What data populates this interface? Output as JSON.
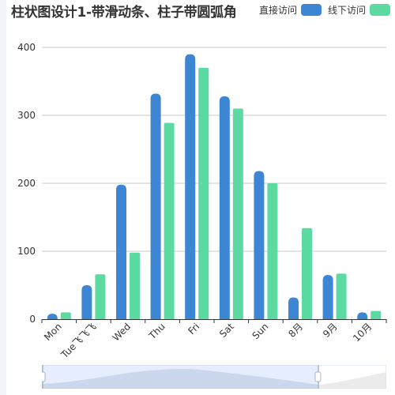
{
  "chart_data": {
    "type": "bar",
    "title": "柱状图设计1-带滑动条、柱子带圆弧角",
    "categories": [
      "Mon",
      "Tue飞飞飞",
      "Wed",
      "Thu",
      "Fri",
      "Sat",
      "Sun",
      "8月",
      "9月",
      "10月"
    ],
    "series": [
      {
        "name": "直接访问",
        "values": [
          8,
          50,
          198,
          332,
          390,
          328,
          218,
          32,
          65,
          10
        ],
        "color": "#3c86d4"
      },
      {
        "name": "线下访问",
        "values": [
          10,
          66,
          98,
          289,
          370,
          310,
          200,
          134,
          67,
          12
        ],
        "color": "#5dd9a2"
      }
    ],
    "ylim": [
      0,
      400
    ],
    "yticks": [
      0,
      100,
      200,
      300,
      400
    ],
    "grid": true,
    "legend_position": "top-right",
    "xlabel": "",
    "ylabel": ""
  },
  "datazoom": {
    "start": 0,
    "end": 80
  }
}
